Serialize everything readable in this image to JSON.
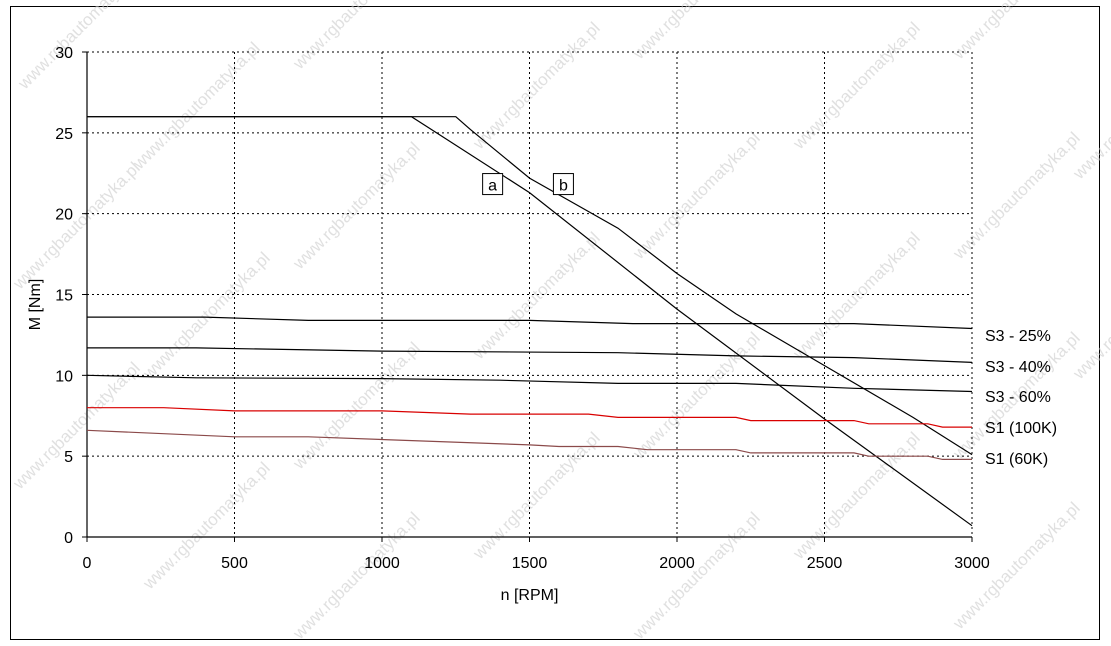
{
  "chart_data": {
    "type": "line",
    "title": "",
    "xlabel": "n [RPM]",
    "ylabel": "M [Nm]",
    "xlim": [
      0,
      3000
    ],
    "ylim": [
      0,
      30
    ],
    "xticks": [
      0,
      500,
      1000,
      1500,
      2000,
      2500,
      3000
    ],
    "yticks": [
      0,
      5,
      10,
      15,
      20,
      25,
      30
    ],
    "grid": true,
    "series": [
      {
        "name": "a",
        "color": "#000000",
        "x": [
          0,
          1100,
          1500,
          2000,
          2500,
          3000
        ],
        "y": [
          26,
          26,
          21.3,
          14.1,
          7.3,
          0.7
        ]
      },
      {
        "name": "b",
        "color": "#000000",
        "x": [
          0,
          1250,
          1300,
          1500,
          1800,
          2000,
          2200,
          2500,
          2800,
          3000
        ],
        "y": [
          26,
          26,
          25.2,
          22.2,
          19.1,
          16.3,
          13.8,
          10.6,
          7.4,
          5.1
        ]
      },
      {
        "name": "S3 - 25%",
        "color": "#000000",
        "x": [
          0,
          400,
          750,
          1500,
          1850,
          2600,
          3000
        ],
        "y": [
          13.6,
          13.6,
          13.4,
          13.4,
          13.2,
          13.2,
          12.9
        ]
      },
      {
        "name": "S3 - 40%",
        "color": "#000000",
        "x": [
          0,
          370,
          1000,
          1800,
          2200,
          2600,
          3000
        ],
        "y": [
          11.7,
          11.7,
          11.5,
          11.4,
          11.2,
          11.1,
          10.8
        ]
      },
      {
        "name": "S3 - 60%",
        "color": "#000000",
        "x": [
          0,
          370,
          1000,
          1400,
          1800,
          2200,
          2600,
          3000
        ],
        "y": [
          10,
          9.85,
          9.8,
          9.7,
          9.5,
          9.5,
          9.2,
          9
        ]
      },
      {
        "name": "S1 (100K)",
        "color": "#d90000",
        "x": [
          0,
          260,
          500,
          1000,
          1300,
          1700,
          1800,
          2200,
          2250,
          2600,
          2650,
          2850,
          2900,
          3000
        ],
        "y": [
          8,
          8,
          7.8,
          7.8,
          7.6,
          7.6,
          7.4,
          7.4,
          7.2,
          7.2,
          7,
          7,
          6.8,
          6.8
        ]
      },
      {
        "name": "S1 (60K)",
        "color": "#8b4a4a",
        "x": [
          0,
          500,
          750,
          1500,
          1600,
          1800,
          1900,
          2200,
          2250,
          2600,
          2650,
          2850,
          2900,
          3000
        ],
        "y": [
          6.6,
          6.2,
          6.2,
          5.7,
          5.6,
          5.6,
          5.4,
          5.4,
          5.2,
          5.2,
          5,
          5,
          4.8,
          4.8
        ]
      }
    ],
    "annotations": [
      {
        "text": "a",
        "x": 1375,
        "y": 21.8
      },
      {
        "text": "b",
        "x": 1615,
        "y": 21.8
      }
    ]
  },
  "watermark": "www.rgbautomatyka.pl"
}
